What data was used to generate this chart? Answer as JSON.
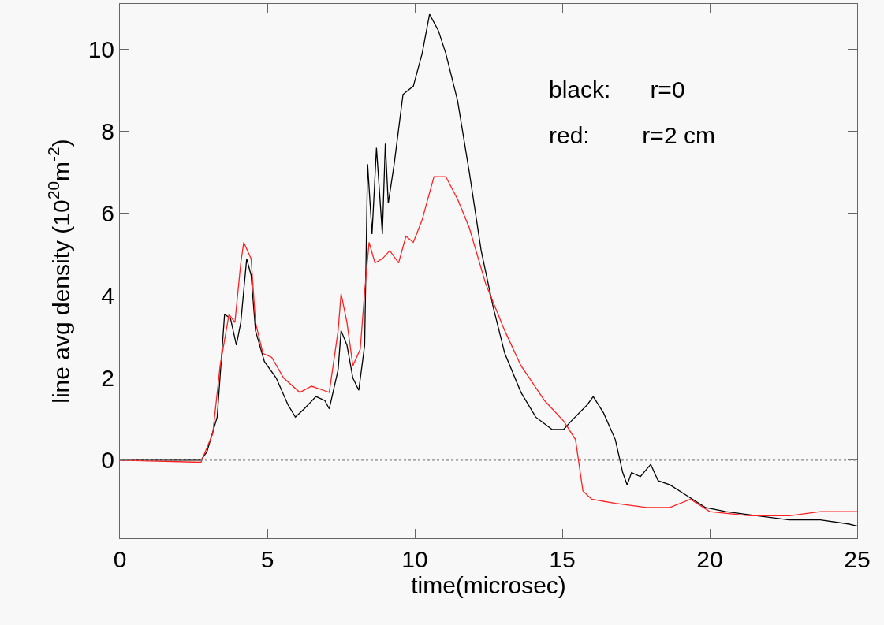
{
  "chart_data": {
    "type": "line",
    "xlabel": "time(microsec)",
    "ylabel": "line avg density (10$^{20}$m$^{-2}$)",
    "annotations": [
      "black:      r=0",
      "red:        r=2 cm"
    ],
    "xlim": [
      0,
      25
    ],
    "xticks": [
      0,
      5,
      10,
      15,
      20,
      25
    ],
    "ylim": [
      -1.9,
      11.1
    ],
    "yticks": [
      0,
      2,
      4,
      6,
      8,
      10
    ],
    "grid": false,
    "marker": "none",
    "line_style": "solid",
    "ref_lines": [
      {
        "axis": "y",
        "value": 0,
        "color": "#888888",
        "line_style": "dotted"
      }
    ],
    "series": [
      {
        "color": "#000000",
        "x": [
          0,
          2.75,
          2.95,
          3.3,
          3.55,
          3.75,
          3.95,
          4.1,
          4.3,
          4.45,
          4.6,
          4.9,
          5.3,
          5.7,
          5.95,
          6.25,
          6.65,
          6.95,
          7.1,
          7.4,
          7.5,
          7.7,
          7.9,
          8.1,
          8.3,
          8.4,
          8.55,
          8.7,
          8.9,
          9.0,
          9.1,
          9.3,
          9.45,
          9.6,
          9.95,
          10.25,
          10.5,
          10.8,
          11.05,
          11.45,
          11.85,
          12.25,
          12.65,
          13.05,
          13.6,
          14.1,
          14.65,
          15.05,
          15.3,
          15.85,
          16.05,
          16.4,
          16.8,
          17.05,
          17.2,
          17.35,
          17.65,
          18.0,
          18.25,
          18.65,
          19.2,
          19.85,
          20.55,
          21.6,
          22.7,
          23.75,
          24.7,
          25
        ],
        "values": [
          0,
          0,
          0.2,
          1.05,
          3.55,
          3.45,
          2.8,
          3.35,
          4.9,
          4.5,
          3.15,
          2.4,
          2.0,
          1.35,
          1.05,
          1.25,
          1.55,
          1.45,
          1.25,
          2.2,
          3.15,
          2.8,
          2.0,
          1.7,
          2.8,
          7.2,
          5.5,
          7.6,
          5.5,
          7.7,
          6.25,
          7.2,
          8.05,
          8.9,
          9.1,
          9.9,
          10.85,
          10.45,
          9.9,
          8.75,
          7.0,
          5.1,
          3.75,
          2.6,
          1.65,
          1.05,
          0.75,
          0.75,
          0.95,
          1.35,
          1.55,
          1.15,
          0.5,
          -0.3,
          -0.6,
          -0.3,
          -0.4,
          -0.1,
          -0.5,
          -0.6,
          -0.85,
          -1.15,
          -1.25,
          -1.35,
          -1.45,
          -1.45,
          -1.55,
          -1.6
        ]
      },
      {
        "color": "#ff2020",
        "x": [
          0,
          2.75,
          3.15,
          3.4,
          3.7,
          3.9,
          4.1,
          4.2,
          4.45,
          4.6,
          4.85,
          5.15,
          5.55,
          6.1,
          6.5,
          6.9,
          7.1,
          7.4,
          7.5,
          7.7,
          7.9,
          8.15,
          8.3,
          8.45,
          8.65,
          8.9,
          9.15,
          9.45,
          9.7,
          9.95,
          10.25,
          10.65,
          11.05,
          11.45,
          11.85,
          12.4,
          13.05,
          13.6,
          14.4,
          15.05,
          15.45,
          15.7,
          16.0,
          16.8,
          17.85,
          18.65,
          19.35,
          20.0,
          21.35,
          22.7,
          23.75,
          25
        ],
        "values": [
          0,
          -0.05,
          0.65,
          2.3,
          3.55,
          3.35,
          4.8,
          5.3,
          4.9,
          3.35,
          2.6,
          2.5,
          2.0,
          1.65,
          1.8,
          1.7,
          1.65,
          3.15,
          4.05,
          3.35,
          2.3,
          2.7,
          4.1,
          5.3,
          4.8,
          4.9,
          5.1,
          4.8,
          5.45,
          5.3,
          5.85,
          6.9,
          6.9,
          6.35,
          5.65,
          4.3,
          3.15,
          2.3,
          1.45,
          0.95,
          0.5,
          -0.75,
          -0.95,
          -1.05,
          -1.15,
          -1.15,
          -0.95,
          -1.25,
          -1.35,
          -1.35,
          -1.25,
          -1.25
        ]
      }
    ]
  }
}
